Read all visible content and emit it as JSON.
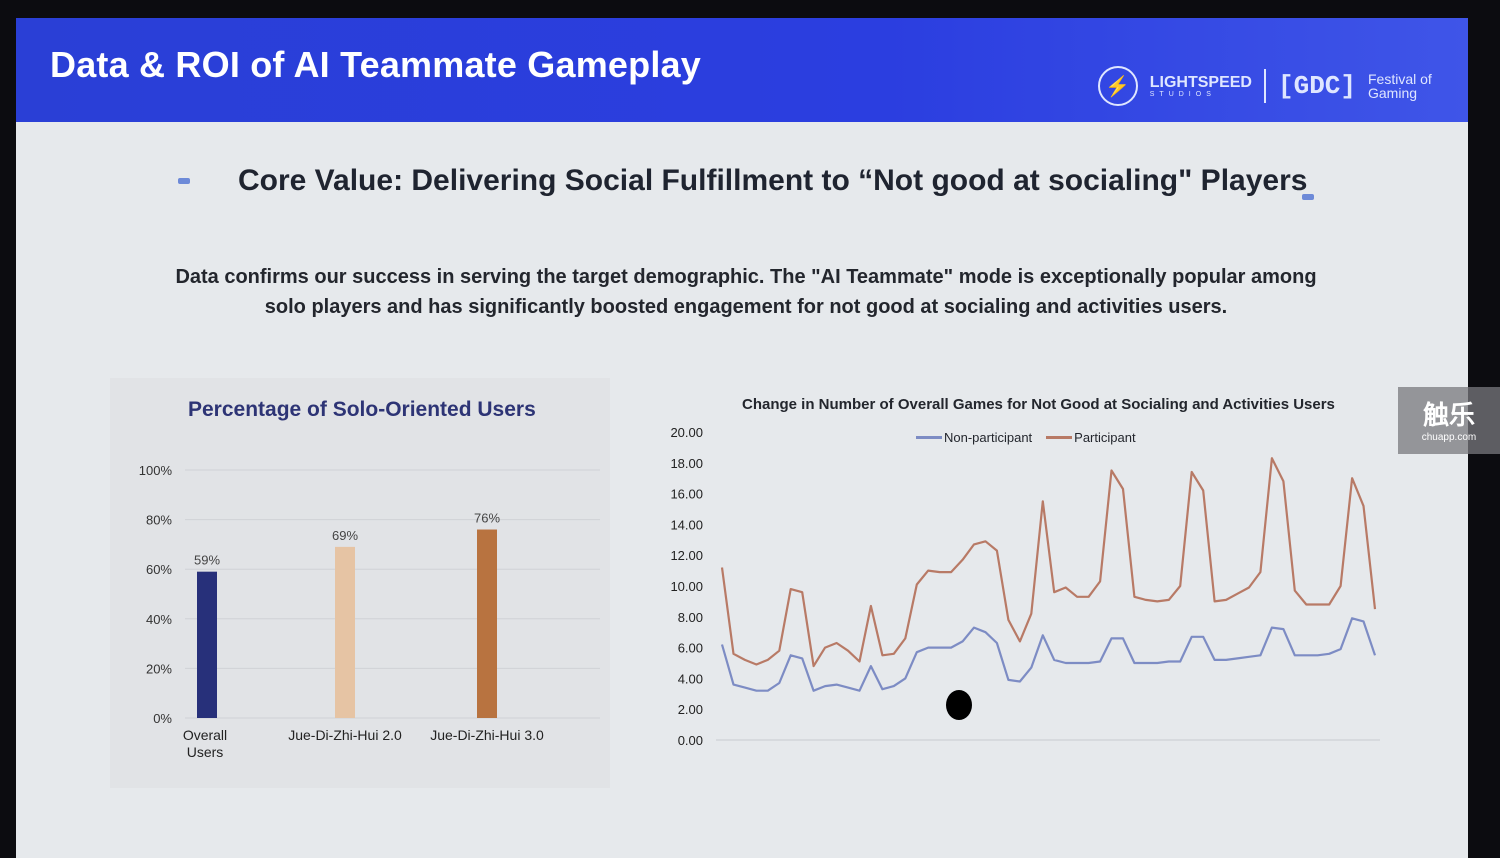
{
  "header": {
    "title": "Data & ROI of AI Teammate Gameplay",
    "logo_lightspeed": "LIGHTSPEED",
    "logo_lightspeed_sub": "STUDIOS",
    "logo_gdc": "[GDC]",
    "logo_festival": "Festival of Gaming",
    "brand_color": "#2b3ee0"
  },
  "subtitle": "Core Value: Delivering Social Fulfillment to “Not good at socialing\" Players",
  "body_text": "Data confirms our success in serving the target demographic. The \"AI Teammate\" mode is exceptionally popular among solo players and has significantly boosted engagement for not good at socialing and activities users.",
  "watermark": {
    "line1": "触乐",
    "line2": "chuapp.com"
  },
  "chart_data": [
    {
      "type": "bar",
      "title": "Percentage of Solo-Oriented Users",
      "categories": [
        "Overall Users",
        "Jue-Di-Zhi-Hui 2.0",
        "Jue-Di-Zhi-Hui 3.0"
      ],
      "values": [
        59,
        69,
        76
      ],
      "data_labels": [
        "59%",
        "69%",
        "76%"
      ],
      "colors": [
        "#27307a",
        "#e6c4a4",
        "#b87340"
      ],
      "yticks": [
        "0%",
        "20%",
        "40%",
        "60%",
        "80%",
        "100%"
      ],
      "ylim": [
        0,
        100
      ],
      "grid": true
    },
    {
      "type": "line",
      "title": "Change in Number of Overall Games for Not Good at Socialing and Activities Users",
      "ylim": [
        0,
        20
      ],
      "yticks": [
        "0.00",
        "2.00",
        "4.00",
        "6.00",
        "8.00",
        "10.00",
        "12.00",
        "14.00",
        "16.00",
        "18.00",
        "20.00"
      ],
      "legend_position": "top",
      "grid": false,
      "series": [
        {
          "name": "Non-participant",
          "color": "#7d8cc4",
          "values": [
            6.2,
            3.6,
            3.4,
            3.2,
            3.2,
            3.7,
            5.5,
            5.3,
            3.2,
            3.5,
            3.6,
            3.4,
            3.2,
            4.8,
            3.3,
            3.5,
            4.0,
            5.7,
            6.0,
            6.0,
            6.0,
            6.4,
            7.3,
            7.0,
            6.3,
            3.9,
            3.8,
            4.7,
            6.8,
            5.2,
            5.0,
            5.0,
            5.0,
            5.1,
            6.6,
            6.6,
            5.0,
            5.0,
            5.0,
            5.1,
            5.1,
            6.7,
            6.7,
            5.2,
            5.2,
            5.3,
            5.4,
            5.5,
            7.3,
            7.2,
            5.5,
            5.5,
            5.5,
            5.6,
            5.9,
            7.9,
            7.7,
            5.5
          ]
        },
        {
          "name": "Participant",
          "color": "#b87a66",
          "values": [
            11.2,
            5.6,
            5.2,
            4.9,
            5.2,
            5.8,
            9.8,
            9.6,
            4.8,
            6.0,
            6.3,
            5.8,
            5.1,
            8.7,
            5.5,
            5.6,
            6.6,
            10.1,
            11.0,
            10.9,
            10.9,
            11.7,
            12.7,
            12.9,
            12.3,
            7.8,
            6.4,
            8.2,
            15.5,
            9.6,
            9.9,
            9.3,
            9.3,
            10.3,
            17.5,
            16.3,
            9.3,
            9.1,
            9.0,
            9.1,
            10.0,
            17.4,
            16.2,
            9.0,
            9.1,
            9.5,
            9.9,
            10.9,
            18.3,
            16.8,
            9.7,
            8.8,
            8.8,
            8.8,
            10.0,
            17.0,
            15.2,
            8.5
          ]
        }
      ]
    }
  ]
}
